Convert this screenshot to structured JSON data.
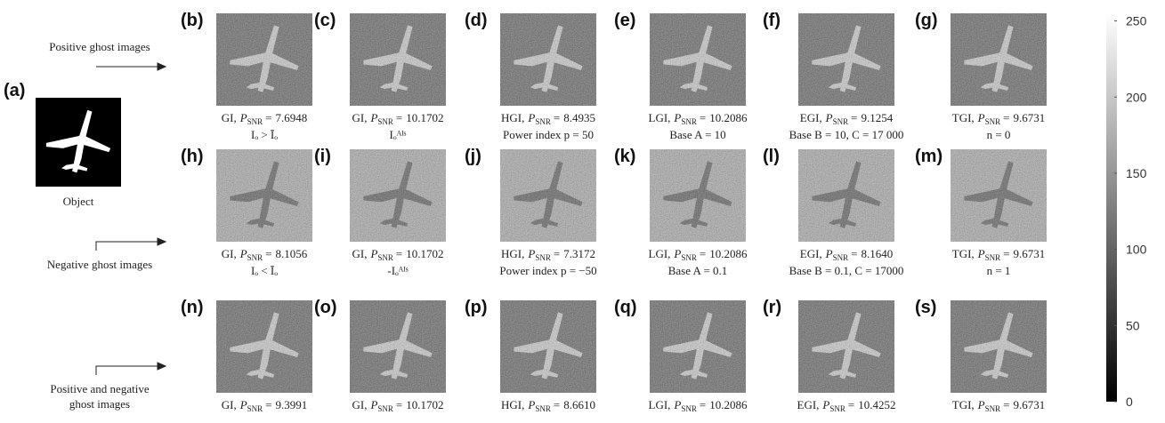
{
  "object": {
    "label": "(a)",
    "caption": "Object"
  },
  "row_labels": [
    [
      "Positive ghost images"
    ],
    [
      "Negative ghost images"
    ],
    [
      "Positive and negative",
      "ghost images"
    ]
  ],
  "psnr_label": {
    "symbol": "P",
    "subscript": "SNR",
    "equals": "="
  },
  "panels": [
    {
      "label": "(b)",
      "method": "GI,",
      "psnr": "7.6948",
      "note": "Iₒ > Īₒ"
    },
    {
      "label": "(c)",
      "method": "GI,",
      "psnr": "10.1702",
      "note": "Iₒᴬᴵˢ"
    },
    {
      "label": "(d)",
      "method": "HGI,",
      "psnr": "8.4935",
      "note": "Power index p = 50"
    },
    {
      "label": "(e)",
      "method": "LGI,",
      "psnr": "10.2086",
      "note": "Base A = 10"
    },
    {
      "label": "(f)",
      "method": "EGI,",
      "psnr": "9.1254",
      "note": "Base B = 10, C =  17 000"
    },
    {
      "label": "(g)",
      "method": "TGI,",
      "psnr": "9.6731",
      "note": "n = 0"
    },
    {
      "label": "(h)",
      "method": "GI,",
      "psnr": "8.1056",
      "note": "Iₒ < Īₒ"
    },
    {
      "label": "(i)",
      "method": "GI,",
      "psnr": "10.1702",
      "note": "-Iₒᴬᴵˢ"
    },
    {
      "label": "(j)",
      "method": "HGI,",
      "psnr": "7.3172",
      "note": "Power index p = −50"
    },
    {
      "label": "(k)",
      "method": "LGI,",
      "psnr": "10.2086",
      "note": "Base A = 0.1"
    },
    {
      "label": "(l)",
      "method": "EGI,",
      "psnr": "8.1640",
      "note": "Base B = 0.1, C = 17000"
    },
    {
      "label": "(m)",
      "method": "TGI,",
      "psnr": "9.6731",
      "note": "n = 1"
    },
    {
      "label": "(n)",
      "method": "GI,",
      "psnr": "9.3991"
    },
    {
      "label": "(o)",
      "method": "GI,",
      "psnr": "10.1702"
    },
    {
      "label": "(p)",
      "method": "HGI,",
      "psnr": "8.6610"
    },
    {
      "label": "(q)",
      "method": "LGI,",
      "psnr": "10.2086"
    },
    {
      "label": "(r)",
      "method": "EGI,",
      "psnr": "10.4252"
    },
    {
      "label": "(s)",
      "method": "TGI,",
      "psnr": "9.6731"
    }
  ],
  "colorbar": {
    "lim": [
      0,
      255
    ],
    "ticks": [
      0,
      50,
      100,
      150,
      200,
      250
    ]
  }
}
